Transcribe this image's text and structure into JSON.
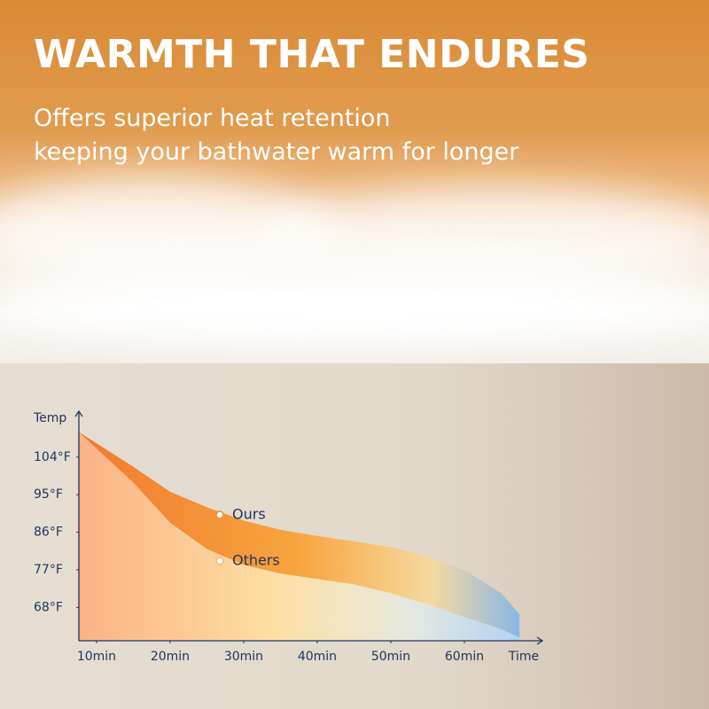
{
  "chart_data": {
    "type": "area",
    "title": "WARMTH THAT ENDURES",
    "subtitle": [
      "Offers superior heat retention",
      "keeping your bathwater warm for longer"
    ],
    "y_label": "Temp",
    "x_label": "Time",
    "x": [
      7.6,
      15,
      20,
      25,
      30,
      35,
      40,
      45,
      50,
      55,
      60,
      65,
      67.5
    ],
    "series": [
      {
        "name": "Ours",
        "color": "#f08a3c",
        "values": [
          110,
          101.7,
          95.7,
          92,
          88.8,
          86.6,
          85.1,
          83.8,
          82.4,
          80.3,
          76.9,
          71.4,
          66.3
        ]
      },
      {
        "name": "Others",
        "color": "#f9b27c",
        "values": [
          110,
          97.9,
          88.3,
          82,
          78.2,
          76.1,
          74.8,
          73.5,
          71.4,
          68.7,
          65.7,
          62.8,
          60.8
        ]
      }
    ],
    "xlim": [
      7.6,
      70
    ],
    "ylim": [
      60,
      115
    ],
    "xticks": [
      {
        "value": 10,
        "label": "10min"
      },
      {
        "value": 20,
        "label": "20min"
      },
      {
        "value": 30,
        "label": "30min"
      },
      {
        "value": 40,
        "label": "40min"
      },
      {
        "value": 50,
        "label": "50min"
      },
      {
        "value": 60,
        "label": "60min"
      }
    ],
    "yticks": [
      {
        "value": 68,
        "label": "68°F"
      },
      {
        "value": 77,
        "label": "77°F"
      },
      {
        "value": 86,
        "label": "86°F"
      },
      {
        "value": 95,
        "label": "95°F"
      },
      {
        "value": 104,
        "label": "104°F"
      }
    ]
  }
}
